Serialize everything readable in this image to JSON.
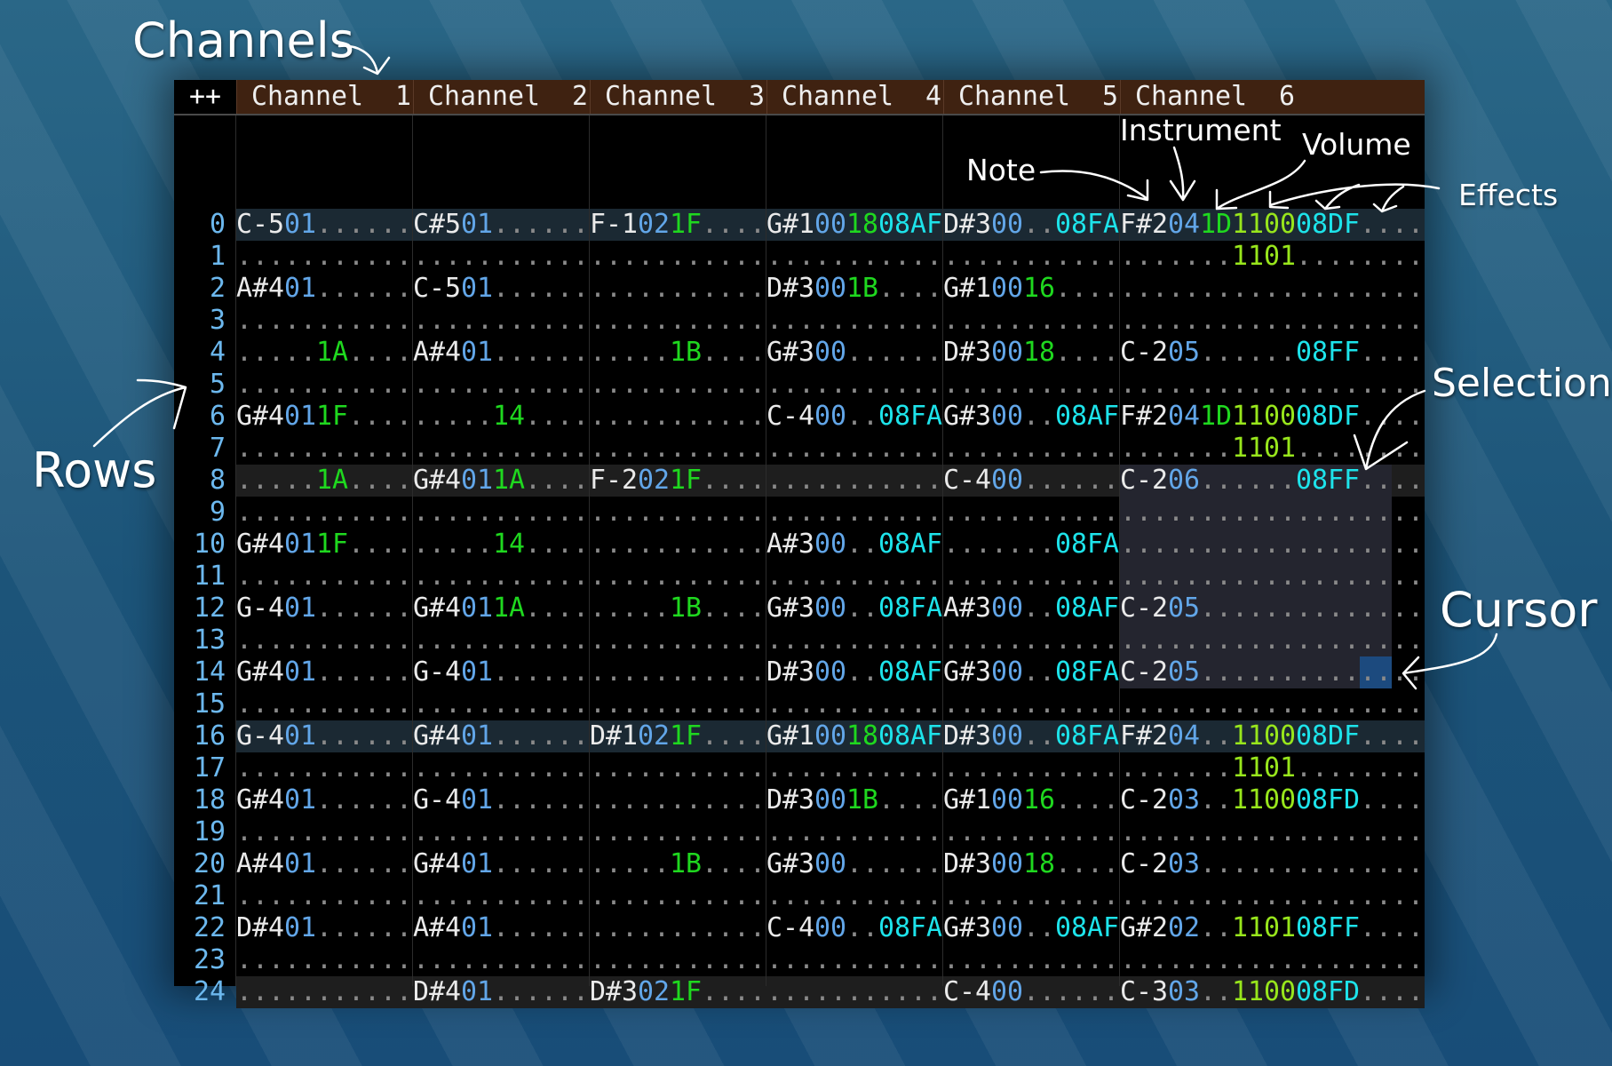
{
  "colors": {
    "note": "#eaeaea",
    "instrument": "#62a6e8",
    "volume": "#1fd81f",
    "effect_08": "#1de3ea",
    "effect_11": "#98e61c",
    "dot": "#8a8a8a",
    "header": "#3f2211",
    "selection": "#24252f",
    "cursor": "#1c4a7e"
  },
  "header": {
    "corner_label": "++",
    "channels": [
      "Channel  1",
      "Channel  2",
      "Channel  3",
      "Channel  4",
      "Channel  5",
      "Channel  6"
    ]
  },
  "channel_effect_columns": [
    1,
    1,
    1,
    1,
    1,
    3
  ],
  "annotations": {
    "channels": "Channels",
    "rows": "Rows",
    "note": "Note",
    "instrument": "Instrument",
    "volume": "Volume",
    "effects": "Effects",
    "selection": "Selection",
    "cursor": "Cursor"
  },
  "selection": {
    "channel": 6,
    "first_row": 8,
    "last_row": 14,
    "first_char": 0,
    "last_char": 16
  },
  "cursor": {
    "channel": 6,
    "row": 14,
    "first_char": 15,
    "last_char": 16
  },
  "rows": [
    [
      [
        "C-5",
        "01",
        "",
        ""
      ],
      [
        "C#5",
        "01",
        "",
        ""
      ],
      [
        "F-1",
        "02",
        "1F",
        ""
      ],
      [
        "G#1",
        "00",
        "18",
        "08AF"
      ],
      [
        "D#3",
        "00",
        "",
        "08FA"
      ],
      [
        "F#2",
        "04",
        "1D",
        "1100",
        "08DF",
        ""
      ]
    ],
    [
      null,
      null,
      null,
      null,
      null,
      [
        "",
        "",
        "",
        "1101",
        "",
        ""
      ]
    ],
    [
      [
        "A#4",
        "01",
        "",
        ""
      ],
      [
        "C-5",
        "01",
        "",
        ""
      ],
      null,
      [
        "D#3",
        "00",
        "1B",
        ""
      ],
      [
        "G#1",
        "00",
        "16",
        ""
      ],
      null
    ],
    [
      null,
      null,
      null,
      null,
      null,
      null
    ],
    [
      [
        "",
        "",
        "1A",
        ""
      ],
      [
        "A#4",
        "01",
        "",
        ""
      ],
      [
        "",
        "",
        "1B",
        ""
      ],
      [
        "G#3",
        "00",
        "",
        ""
      ],
      [
        "D#3",
        "00",
        "18",
        ""
      ],
      [
        "C-2",
        "05",
        "",
        "",
        "08FF",
        ""
      ]
    ],
    [
      null,
      null,
      null,
      null,
      null,
      null
    ],
    [
      [
        "G#4",
        "01",
        "1F",
        ""
      ],
      [
        "",
        "",
        "14",
        ""
      ],
      null,
      [
        "C-4",
        "00",
        "",
        "08FA"
      ],
      [
        "G#3",
        "00",
        "",
        "08AF"
      ],
      [
        "F#2",
        "04",
        "1D",
        "1100",
        "08DF",
        ""
      ]
    ],
    [
      null,
      null,
      null,
      null,
      null,
      [
        "",
        "",
        "",
        "1101",
        "",
        ""
      ]
    ],
    [
      [
        "",
        "",
        "1A",
        ""
      ],
      [
        "G#4",
        "01",
        "1A",
        ""
      ],
      [
        "F-2",
        "02",
        "1F",
        ""
      ],
      null,
      [
        "C-4",
        "00",
        "",
        ""
      ],
      [
        "C-2",
        "06",
        "",
        "",
        "08FF",
        ""
      ]
    ],
    [
      null,
      null,
      null,
      null,
      null,
      null
    ],
    [
      [
        "G#4",
        "01",
        "1F",
        ""
      ],
      [
        "",
        "",
        "14",
        ""
      ],
      null,
      [
        "A#3",
        "00",
        "",
        "08AF"
      ],
      [
        "",
        "",
        "",
        "08FA"
      ],
      null
    ],
    [
      null,
      null,
      null,
      null,
      null,
      null
    ],
    [
      [
        "G-4",
        "01",
        "",
        ""
      ],
      [
        "G#4",
        "01",
        "1A",
        ""
      ],
      [
        "",
        "",
        "1B",
        ""
      ],
      [
        "G#3",
        "00",
        "",
        "08FA"
      ],
      [
        "A#3",
        "00",
        "",
        "08AF"
      ],
      [
        "C-2",
        "05",
        "",
        "",
        "",
        ""
      ]
    ],
    [
      null,
      null,
      null,
      null,
      null,
      null
    ],
    [
      [
        "G#4",
        "01",
        "",
        ""
      ],
      [
        "G-4",
        "01",
        "",
        ""
      ],
      null,
      [
        "D#3",
        "00",
        "",
        "08AF"
      ],
      [
        "G#3",
        "00",
        "",
        "08FA"
      ],
      [
        "C-2",
        "05",
        "",
        "",
        "",
        ""
      ]
    ],
    [
      null,
      null,
      null,
      null,
      null,
      null
    ],
    [
      [
        "G-4",
        "01",
        "",
        ""
      ],
      [
        "G#4",
        "01",
        "",
        ""
      ],
      [
        "D#1",
        "02",
        "1F",
        ""
      ],
      [
        "G#1",
        "00",
        "18",
        "08AF"
      ],
      [
        "D#3",
        "00",
        "",
        "08FA"
      ],
      [
        "F#2",
        "04",
        "",
        "1100",
        "08DF",
        ""
      ]
    ],
    [
      null,
      null,
      null,
      null,
      null,
      [
        "",
        "",
        "",
        "1101",
        "",
        ""
      ]
    ],
    [
      [
        "G#4",
        "01",
        "",
        ""
      ],
      [
        "G-4",
        "01",
        "",
        ""
      ],
      null,
      [
        "D#3",
        "00",
        "1B",
        ""
      ],
      [
        "G#1",
        "00",
        "16",
        ""
      ],
      [
        "C-2",
        "03",
        "",
        "1100",
        "08FD",
        ""
      ]
    ],
    [
      null,
      null,
      null,
      null,
      null,
      null
    ],
    [
      [
        "A#4",
        "01",
        "",
        ""
      ],
      [
        "G#4",
        "01",
        "",
        ""
      ],
      [
        "",
        "",
        "1B",
        ""
      ],
      [
        "G#3",
        "00",
        "",
        ""
      ],
      [
        "D#3",
        "00",
        "18",
        ""
      ],
      [
        "C-2",
        "03",
        "",
        "",
        "",
        ""
      ]
    ],
    [
      null,
      null,
      null,
      null,
      null,
      null
    ],
    [
      [
        "D#4",
        "01",
        "",
        ""
      ],
      [
        "A#4",
        "01",
        "",
        ""
      ],
      null,
      [
        "C-4",
        "00",
        "",
        "08FA"
      ],
      [
        "G#3",
        "00",
        "",
        "08AF"
      ],
      [
        "G#2",
        "02",
        "",
        "1101",
        "08FF",
        ""
      ]
    ],
    [
      null,
      null,
      null,
      null,
      null,
      null
    ],
    [
      null,
      [
        "D#4",
        "01",
        "",
        ""
      ],
      [
        "D#3",
        "02",
        "1F",
        ""
      ],
      null,
      [
        "C-4",
        "00",
        "",
        ""
      ],
      [
        "C-3",
        "03",
        "",
        "1100",
        "08FD",
        ""
      ]
    ]
  ]
}
